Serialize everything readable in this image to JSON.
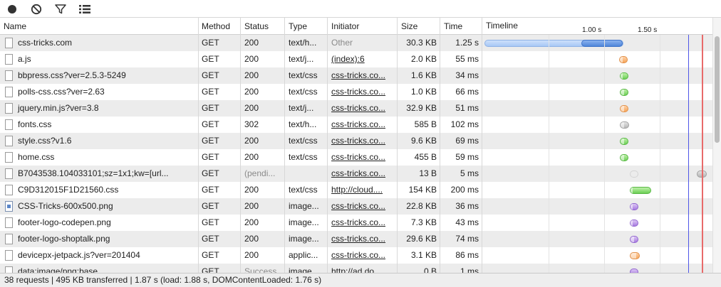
{
  "columns": {
    "name": "Name",
    "method": "Method",
    "status": "Status",
    "type": "Type",
    "initiator": "Initiator",
    "size": "Size",
    "time": "Time",
    "timeline": "Timeline"
  },
  "timeline_ticks": [
    "1.00 s",
    "1.50 s"
  ],
  "requests": [
    {
      "name": "css-tricks.com",
      "method": "GET",
      "status": "200",
      "type": "text/h...",
      "initiator": "Other",
      "size": "30.3 KB",
      "time": "1.25 s",
      "bar": "doc",
      "start": 0.0,
      "latency": 0.88,
      "end": 1.25,
      "icon": "document"
    },
    {
      "name": "a.js",
      "method": "GET",
      "status": "200",
      "type": "text/j...",
      "initiator": "(index):6",
      "size": "2.0 KB",
      "time": "55 ms",
      "bar": "orange",
      "start": 1.21,
      "latency": 1.24,
      "end": 1.29,
      "icon": "document"
    },
    {
      "name": "bbpress.css?ver=2.5.3-5249",
      "method": "GET",
      "status": "200",
      "type": "text/css",
      "initiator": "css-tricks.co...",
      "size": "1.6 KB",
      "time": "34 ms",
      "bar": "green",
      "start": 1.22,
      "latency": 1.24,
      "end": 1.27,
      "icon": "document"
    },
    {
      "name": "polls-css.css?ver=2.63",
      "method": "GET",
      "status": "200",
      "type": "text/css",
      "initiator": "css-tricks.co...",
      "size": "1.0 KB",
      "time": "66 ms",
      "bar": "green",
      "start": 1.22,
      "latency": 1.25,
      "end": 1.29,
      "icon": "document"
    },
    {
      "name": "jquery.min.js?ver=3.8",
      "method": "GET",
      "status": "200",
      "type": "text/j...",
      "initiator": "css-tricks.co...",
      "size": "32.9 KB",
      "time": "51 ms",
      "bar": "orange",
      "start": 1.22,
      "latency": 1.25,
      "end": 1.27,
      "icon": "document"
    },
    {
      "name": "fonts.css",
      "method": "GET",
      "status": "302",
      "type": "text/h...",
      "initiator": "css-tricks.co...",
      "size": "585 B",
      "time": "102 ms",
      "bar": "grey",
      "start": 1.22,
      "latency": 1.25,
      "end": 1.3,
      "icon": "document"
    },
    {
      "name": "style.css?v1.6",
      "method": "GET",
      "status": "200",
      "type": "text/css",
      "initiator": "css-tricks.co...",
      "size": "9.6 KB",
      "time": "69 ms",
      "bar": "green",
      "start": 1.22,
      "latency": 1.25,
      "end": 1.29,
      "icon": "document"
    },
    {
      "name": "home.css",
      "method": "GET",
      "status": "200",
      "type": "text/css",
      "initiator": "css-tricks.co...",
      "size": "455 B",
      "time": "59 ms",
      "bar": "green",
      "start": 1.22,
      "latency": 1.25,
      "end": 1.29,
      "icon": "document"
    },
    {
      "name": "B7043538.104033101;sz=1x1;kw=[url...",
      "method": "GET",
      "status": "(pendi...",
      "type": "",
      "initiator": "css-tricks.co...",
      "size": "13 B",
      "time": "5 ms",
      "bar": "pending",
      "start": 1.31,
      "latency": 1.31,
      "end": 1.34,
      "icon": "document"
    },
    {
      "name": "C9D312015F1D21560.css",
      "method": "GET",
      "status": "200",
      "type": "text/css",
      "initiator": "http://cloud....",
      "size": "154 KB",
      "time": "200 ms",
      "bar": "green",
      "start": 1.31,
      "latency": 1.33,
      "end": 1.5,
      "icon": "document"
    },
    {
      "name": "CSS-Tricks-600x500.png",
      "method": "GET",
      "status": "200",
      "type": "image...",
      "initiator": "css-tricks.co...",
      "size": "22.8 KB",
      "time": "36 ms",
      "bar": "purple",
      "start": 1.31,
      "latency": 1.33,
      "end": 1.36,
      "icon": "image"
    },
    {
      "name": "footer-logo-codepen.png",
      "method": "GET",
      "status": "200",
      "type": "image...",
      "initiator": "css-tricks.co...",
      "size": "7.3 KB",
      "time": "43 ms",
      "bar": "purple",
      "start": 1.31,
      "latency": 1.33,
      "end": 1.36,
      "icon": "document"
    },
    {
      "name": "footer-logo-shoptalk.png",
      "method": "GET",
      "status": "200",
      "type": "image...",
      "initiator": "css-tricks.co...",
      "size": "29.6 KB",
      "time": "74 ms",
      "bar": "purple",
      "start": 1.31,
      "latency": 1.34,
      "end": 1.38,
      "icon": "document"
    },
    {
      "name": "devicepx-jetpack.js?ver=201404",
      "method": "GET",
      "status": "200",
      "type": "applic...",
      "initiator": "css-tricks.co...",
      "size": "3.1 KB",
      "time": "86 ms",
      "bar": "orange",
      "start": 1.31,
      "latency": 1.36,
      "end": 1.4,
      "icon": "document"
    },
    {
      "name": "data:image/png;base...",
      "method": "GET",
      "status": "Success",
      "type": "image...",
      "initiator": "http://ad.do...",
      "size": "0 B",
      "time": "1 ms",
      "bar": "purple",
      "start": 1.31,
      "latency": 1.31,
      "end": 1.36,
      "icon": "document"
    }
  ],
  "status_bar": "38 requests | 495 KB transferred | 1.87 s (load: 1.88 s, DOMContentLoaded: 1.76 s)"
}
